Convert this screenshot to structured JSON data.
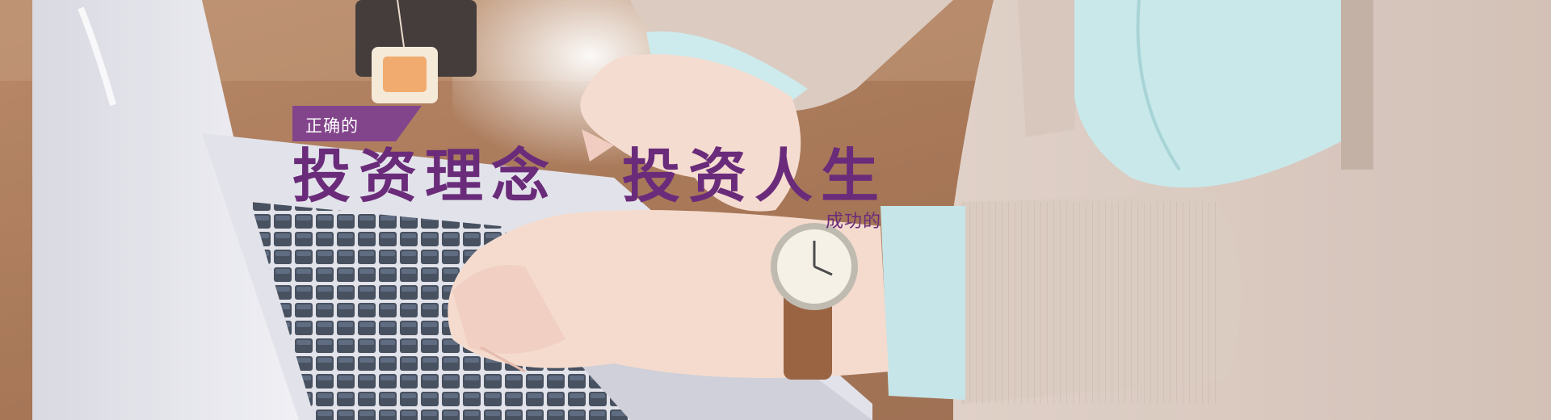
{
  "banner": {
    "tag": "正确的",
    "headline_1": "投资理念",
    "headline_2": "投资人生",
    "subline": "成功的"
  },
  "colors": {
    "accent": "#6a2c7a",
    "tag_bg": "#7e3f8f",
    "desk": "#a36a45",
    "sweater": "#d8c7bd",
    "shirt": "#bfe3e6",
    "skin": "#f2d2c4",
    "laptop": "#e3e3ea",
    "keyboard": "#2d3544"
  }
}
